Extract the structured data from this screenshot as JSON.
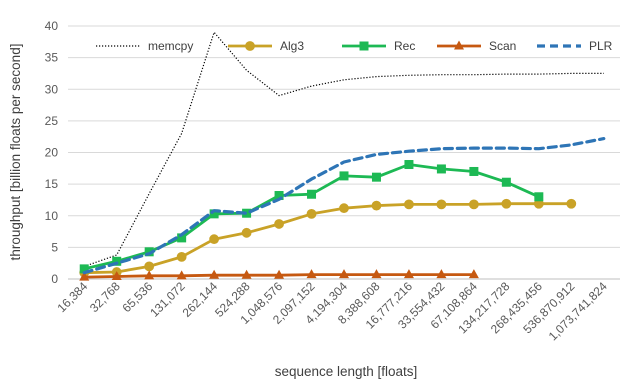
{
  "chart_data": {
    "type": "line",
    "title": "",
    "xlabel": "sequence length [floats]",
    "ylabel": "throughput [billion floats per second]",
    "ylim": [
      0,
      40
    ],
    "yticks": [
      "0",
      "5",
      "10",
      "15",
      "20",
      "25",
      "30",
      "35",
      "40"
    ],
    "grid": "horizontal",
    "legend_position": "top",
    "categories": [
      "16,384",
      "32,768",
      "65,536",
      "131,072",
      "262,144",
      "524,288",
      "1,048,576",
      "2,097,152",
      "4,194,304",
      "8,388,608",
      "16,777,216",
      "33,554,432",
      "67,108,864",
      "134,217,728",
      "268,435,456",
      "536,870,912",
      "1,073,741,824"
    ],
    "series": [
      {
        "name": "memcpy",
        "color": "#000000",
        "style": "dotted",
        "marker": "none",
        "values": [
          2.0,
          3.8,
          13.5,
          23.0,
          39.0,
          33.0,
          29.0,
          30.5,
          31.5,
          32.0,
          32.2,
          32.3,
          32.3,
          32.4,
          32.4,
          32.5,
          32.5
        ]
      },
      {
        "name": "Alg3",
        "color": "#C9A227",
        "style": "solid",
        "marker": "circle",
        "values": [
          1.0,
          1.1,
          2.0,
          3.5,
          6.3,
          7.3,
          8.7,
          10.3,
          11.2,
          11.6,
          11.8,
          11.8,
          11.8,
          11.9,
          11.9,
          11.9,
          null
        ]
      },
      {
        "name": "Rec",
        "color": "#1DB954",
        "style": "solid",
        "marker": "square",
        "values": [
          1.6,
          2.8,
          4.3,
          6.5,
          10.3,
          10.4,
          13.2,
          13.4,
          16.3,
          16.1,
          18.1,
          17.4,
          17.0,
          15.3,
          13.0,
          null,
          null
        ]
      },
      {
        "name": "Scan",
        "color": "#C65911",
        "style": "solid",
        "marker": "triangle",
        "values": [
          0.3,
          0.4,
          0.5,
          0.5,
          0.6,
          0.6,
          0.6,
          0.7,
          0.7,
          0.7,
          0.7,
          0.7,
          0.7,
          null,
          null,
          null,
          null
        ]
      },
      {
        "name": "PLR",
        "color": "#2E75B6",
        "style": "dashed",
        "marker": "none",
        "values": [
          1.0,
          2.5,
          4.0,
          7.0,
          10.8,
          10.4,
          12.6,
          15.8,
          18.5,
          19.7,
          20.2,
          20.6,
          20.7,
          20.7,
          20.6,
          21.2,
          22.2
        ]
      }
    ]
  }
}
